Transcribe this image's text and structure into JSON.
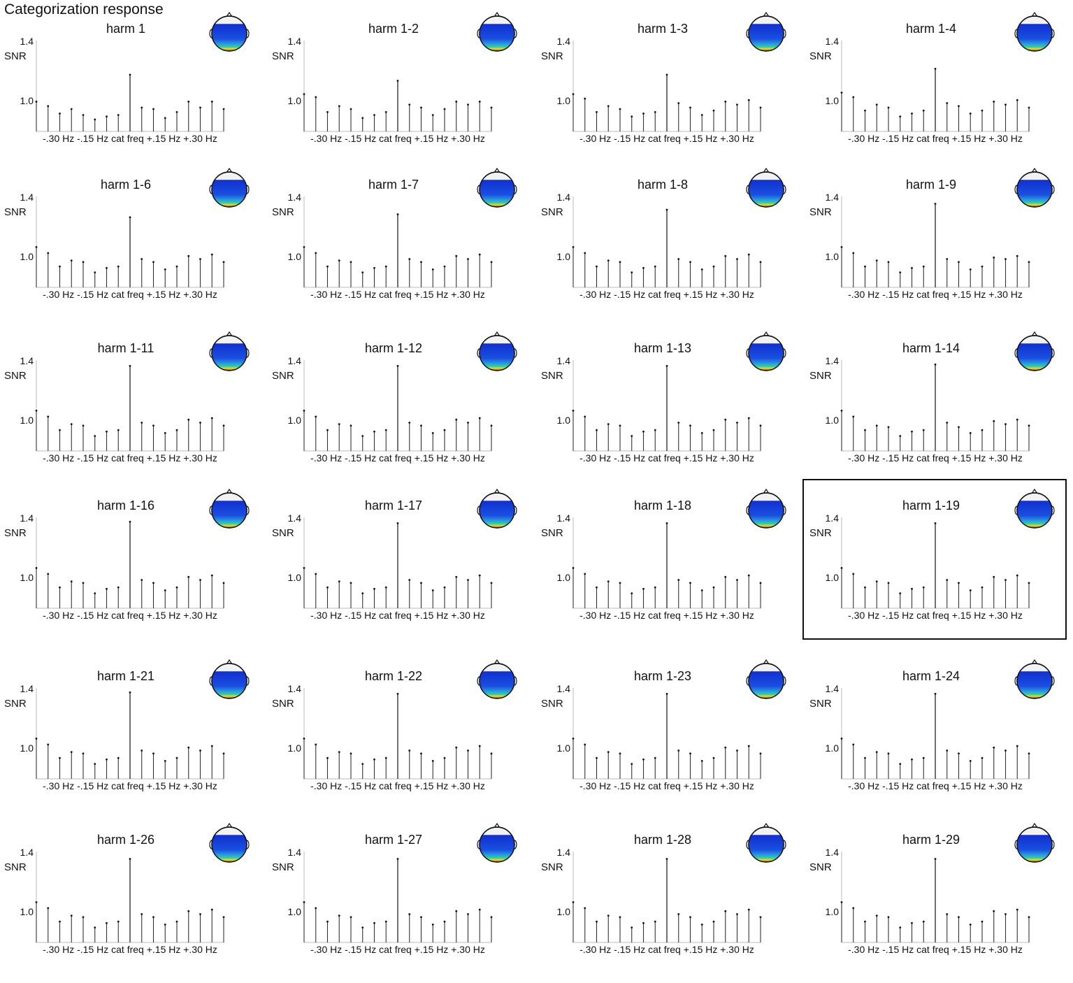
{
  "title": "Categorization response",
  "shared": {
    "y_axis_label": "SNR",
    "y_ticks": [
      "1.4",
      "1.0"
    ],
    "x_axis_label": "-.30 Hz -.15 Hz cat freq +.15 Hz +.30 Hz"
  },
  "highlighted_panel": "harm 1-19",
  "chart_data": [
    {
      "type": "bar",
      "title": "harm 1",
      "ylim": [
        0.8,
        1.4
      ],
      "values": [
        1.0,
        0.97,
        0.92,
        0.95,
        0.91,
        0.88,
        0.9,
        0.91,
        1.18,
        0.96,
        0.95,
        0.89,
        0.93,
        1.0,
        0.96,
        1.0,
        0.95
      ]
    },
    {
      "type": "bar",
      "title": "harm 1-2",
      "ylim": [
        0.8,
        1.4
      ],
      "values": [
        1.05,
        1.03,
        0.93,
        0.97,
        0.95,
        0.89,
        0.91,
        0.93,
        1.14,
        0.98,
        0.96,
        0.91,
        0.95,
        1.0,
        0.98,
        1.0,
        0.96
      ]
    },
    {
      "type": "bar",
      "title": "harm 1-3",
      "ylim": [
        0.8,
        1.4
      ],
      "values": [
        1.05,
        1.02,
        0.93,
        0.97,
        0.95,
        0.9,
        0.92,
        0.93,
        1.18,
        0.99,
        0.96,
        0.91,
        0.94,
        1.0,
        0.98,
        1.01,
        0.96
      ]
    },
    {
      "type": "bar",
      "title": "harm 1-4",
      "ylim": [
        0.8,
        1.4
      ],
      "values": [
        1.06,
        1.03,
        0.94,
        0.98,
        0.96,
        0.9,
        0.92,
        0.94,
        1.22,
        0.99,
        0.97,
        0.92,
        0.94,
        1.0,
        0.98,
        1.01,
        0.96
      ]
    },
    {
      "type": "bar",
      "title": "harm 1-6",
      "ylim": [
        0.8,
        1.4
      ],
      "values": [
        1.07,
        1.03,
        0.94,
        0.98,
        0.97,
        0.9,
        0.93,
        0.94,
        1.27,
        0.99,
        0.97,
        0.92,
        0.94,
        1.01,
        0.99,
        1.02,
        0.97
      ]
    },
    {
      "type": "bar",
      "title": "harm 1-7",
      "ylim": [
        0.8,
        1.4
      ],
      "values": [
        1.07,
        1.03,
        0.94,
        0.98,
        0.97,
        0.9,
        0.93,
        0.94,
        1.29,
        0.99,
        0.97,
        0.92,
        0.94,
        1.01,
        0.99,
        1.02,
        0.97
      ]
    },
    {
      "type": "bar",
      "title": "harm 1-8",
      "ylim": [
        0.8,
        1.4
      ],
      "values": [
        1.07,
        1.03,
        0.94,
        0.98,
        0.97,
        0.9,
        0.93,
        0.94,
        1.32,
        0.99,
        0.97,
        0.92,
        0.94,
        1.01,
        0.99,
        1.02,
        0.97
      ]
    },
    {
      "type": "bar",
      "title": "harm 1-9",
      "ylim": [
        0.8,
        1.4
      ],
      "values": [
        1.07,
        1.03,
        0.94,
        0.98,
        0.97,
        0.9,
        0.93,
        0.94,
        1.36,
        0.99,
        0.97,
        0.92,
        0.94,
        1.0,
        0.99,
        1.01,
        0.97
      ]
    },
    {
      "type": "bar",
      "title": "harm 1-11",
      "ylim": [
        0.8,
        1.4
      ],
      "values": [
        1.07,
        1.03,
        0.94,
        0.98,
        0.97,
        0.9,
        0.93,
        0.94,
        1.37,
        0.99,
        0.97,
        0.92,
        0.94,
        1.01,
        0.99,
        1.02,
        0.97
      ]
    },
    {
      "type": "bar",
      "title": "harm 1-12",
      "ylim": [
        0.8,
        1.4
      ],
      "values": [
        1.07,
        1.03,
        0.94,
        0.98,
        0.97,
        0.9,
        0.93,
        0.94,
        1.37,
        0.99,
        0.97,
        0.92,
        0.94,
        1.01,
        0.99,
        1.02,
        0.97
      ]
    },
    {
      "type": "bar",
      "title": "harm 1-13",
      "ylim": [
        0.8,
        1.4
      ],
      "values": [
        1.07,
        1.03,
        0.94,
        0.98,
        0.97,
        0.9,
        0.93,
        0.94,
        1.37,
        0.99,
        0.97,
        0.92,
        0.94,
        1.01,
        0.99,
        1.02,
        0.97
      ]
    },
    {
      "type": "bar",
      "title": "harm 1-14",
      "ylim": [
        0.8,
        1.4
      ],
      "values": [
        1.07,
        1.03,
        0.94,
        0.97,
        0.96,
        0.9,
        0.93,
        0.94,
        1.38,
        0.99,
        0.96,
        0.92,
        0.94,
        1.0,
        0.98,
        1.01,
        0.97
      ]
    },
    {
      "type": "bar",
      "title": "harm 1-16",
      "ylim": [
        0.8,
        1.4
      ],
      "values": [
        1.07,
        1.03,
        0.94,
        0.98,
        0.97,
        0.9,
        0.93,
        0.94,
        1.38,
        0.99,
        0.97,
        0.92,
        0.94,
        1.01,
        0.99,
        1.02,
        0.97
      ]
    },
    {
      "type": "bar",
      "title": "harm 1-17",
      "ylim": [
        0.8,
        1.4
      ],
      "values": [
        1.07,
        1.03,
        0.94,
        0.98,
        0.97,
        0.9,
        0.93,
        0.94,
        1.37,
        0.99,
        0.97,
        0.92,
        0.94,
        1.01,
        0.99,
        1.02,
        0.97
      ]
    },
    {
      "type": "bar",
      "title": "harm 1-18",
      "ylim": [
        0.8,
        1.4
      ],
      "values": [
        1.07,
        1.03,
        0.94,
        0.98,
        0.97,
        0.9,
        0.93,
        0.94,
        1.37,
        0.99,
        0.97,
        0.92,
        0.94,
        1.01,
        0.99,
        1.02,
        0.97
      ]
    },
    {
      "type": "bar",
      "title": "harm 1-19",
      "ylim": [
        0.8,
        1.4
      ],
      "values": [
        1.07,
        1.03,
        0.94,
        0.98,
        0.97,
        0.9,
        0.93,
        0.94,
        1.37,
        0.99,
        0.97,
        0.92,
        0.94,
        1.01,
        0.99,
        1.02,
        0.97
      ]
    },
    {
      "type": "bar",
      "title": "harm 1-21",
      "ylim": [
        0.8,
        1.4
      ],
      "values": [
        1.07,
        1.03,
        0.94,
        0.98,
        0.97,
        0.9,
        0.93,
        0.94,
        1.38,
        0.99,
        0.97,
        0.92,
        0.94,
        1.01,
        0.99,
        1.02,
        0.97
      ]
    },
    {
      "type": "bar",
      "title": "harm 1-22",
      "ylim": [
        0.8,
        1.4
      ],
      "values": [
        1.07,
        1.03,
        0.94,
        0.98,
        0.97,
        0.9,
        0.93,
        0.94,
        1.37,
        0.99,
        0.97,
        0.92,
        0.94,
        1.01,
        0.99,
        1.02,
        0.97
      ]
    },
    {
      "type": "bar",
      "title": "harm 1-23",
      "ylim": [
        0.8,
        1.4
      ],
      "values": [
        1.07,
        1.03,
        0.94,
        0.98,
        0.97,
        0.9,
        0.93,
        0.94,
        1.37,
        0.99,
        0.97,
        0.92,
        0.94,
        1.01,
        0.99,
        1.02,
        0.97
      ]
    },
    {
      "type": "bar",
      "title": "harm 1-24",
      "ylim": [
        0.8,
        1.4
      ],
      "values": [
        1.07,
        1.03,
        0.94,
        0.98,
        0.97,
        0.9,
        0.93,
        0.94,
        1.37,
        0.99,
        0.97,
        0.92,
        0.94,
        1.01,
        0.99,
        1.02,
        0.97
      ]
    },
    {
      "type": "bar",
      "title": "harm 1-26",
      "ylim": [
        0.8,
        1.4
      ],
      "values": [
        1.07,
        1.03,
        0.94,
        0.98,
        0.97,
        0.9,
        0.93,
        0.94,
        1.36,
        0.99,
        0.97,
        0.92,
        0.94,
        1.01,
        0.99,
        1.02,
        0.97
      ]
    },
    {
      "type": "bar",
      "title": "harm 1-27",
      "ylim": [
        0.8,
        1.4
      ],
      "values": [
        1.07,
        1.03,
        0.94,
        0.98,
        0.97,
        0.9,
        0.93,
        0.94,
        1.36,
        0.99,
        0.97,
        0.92,
        0.94,
        1.01,
        0.99,
        1.02,
        0.97
      ]
    },
    {
      "type": "bar",
      "title": "harm 1-28",
      "ylim": [
        0.8,
        1.4
      ],
      "values": [
        1.07,
        1.03,
        0.94,
        0.98,
        0.97,
        0.9,
        0.93,
        0.94,
        1.36,
        0.99,
        0.97,
        0.92,
        0.94,
        1.01,
        0.99,
        1.02,
        0.97
      ]
    },
    {
      "type": "bar",
      "title": "harm 1-29",
      "ylim": [
        0.8,
        1.4
      ],
      "values": [
        1.07,
        1.03,
        0.94,
        0.98,
        0.97,
        0.9,
        0.93,
        0.94,
        1.36,
        0.99,
        0.97,
        0.92,
        0.94,
        1.01,
        0.99,
        1.02,
        0.97
      ]
    }
  ]
}
